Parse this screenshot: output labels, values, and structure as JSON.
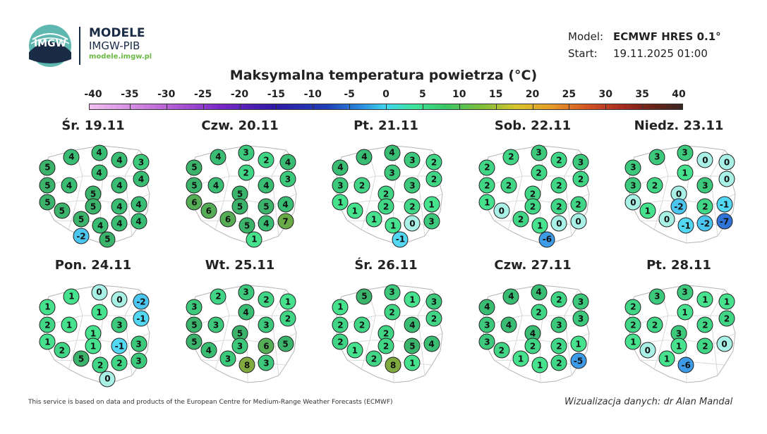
{
  "header": {
    "logo_text": "IMGW",
    "brand_title": "MODELE",
    "brand_subtitle": "IMGW-PIB",
    "brand_url": "modele.imgw.pl",
    "model_label": "Model:",
    "model_value": "ECMWF HRES 0.1°",
    "start_label": "Start:",
    "start_value": "19.11.2025 01:00"
  },
  "title": "Maksymalna temperatura powietrza (°C)",
  "scale": {
    "labels": [
      "-40",
      "-35",
      "-30",
      "-25",
      "-20",
      "-15",
      "-10",
      "-5",
      "0",
      "5",
      "10",
      "15",
      "20",
      "25",
      "30",
      "35",
      "40"
    ],
    "colors": {
      "min": "#f2c0f0",
      "zero": "#3ed7ef",
      "five": "#3ee39a",
      "ten": "#38c766",
      "max": "#3a2623"
    }
  },
  "days": [
    {
      "title": "Śr. 19.11",
      "values": [
        "4",
        "4",
        "4",
        "3",
        "5",
        "4",
        "4",
        "5",
        "4",
        "5",
        "4",
        "5",
        "5",
        "4",
        "4",
        "5",
        "5",
        "4",
        "4",
        "4",
        "5",
        "-2"
      ]
    },
    {
      "title": "Czw. 20.11",
      "values": [
        "4",
        "3",
        "2",
        "4",
        "5",
        "2",
        "3",
        "5",
        "4",
        "5",
        "4",
        "6",
        "5",
        "5",
        "4",
        "6",
        "6",
        "5",
        "4",
        "7",
        "1"
      ]
    },
    {
      "title": "Pt. 21.11",
      "values": [
        "4",
        "4",
        "3",
        "2",
        "4",
        "3",
        "2",
        "3",
        "2",
        "2",
        "3",
        "1",
        "2",
        "2",
        "1",
        "1",
        "1",
        "1",
        "0",
        "3",
        "-1"
      ]
    },
    {
      "title": "Sob. 22.11",
      "values": [
        "2",
        "3",
        "2",
        "3",
        "2",
        "2",
        "2",
        "2",
        "2",
        "2",
        "2",
        "1",
        "2",
        "2",
        "2",
        "0",
        "2",
        "1",
        "0",
        "0",
        "-6"
      ]
    },
    {
      "title": "Niedz. 23.11",
      "values": [
        "3",
        "3",
        "0",
        "0",
        "3",
        "1",
        "0",
        "3",
        "2",
        "0",
        "3",
        "0",
        "-2",
        "2",
        "-1",
        "1",
        "0",
        "-1",
        "-2",
        "-7"
      ]
    },
    {
      "title": "Pon. 24.11",
      "values": [
        "1",
        "0",
        "0",
        "-2",
        "1",
        "1",
        "-1",
        "2",
        "1",
        "1",
        "3",
        "1",
        "1",
        "-1",
        "3",
        "2",
        "5",
        "2",
        "2",
        "3",
        "0"
      ]
    },
    {
      "title": "Wt. 25.11",
      "values": [
        "2",
        "3",
        "2",
        "1",
        "3",
        "4",
        "2",
        "5",
        "3",
        "5",
        "3",
        "5",
        "3",
        "6",
        "5",
        "4",
        "3",
        "8",
        "3"
      ]
    },
    {
      "title": "Śr. 26.11",
      "values": [
        "5",
        "3",
        "1",
        "3",
        "1",
        "2",
        "2",
        "2",
        "2",
        "2",
        "4",
        "2",
        "2",
        "5",
        "4",
        "1",
        "2",
        "8",
        "1"
      ]
    },
    {
      "title": "Czw. 27.11",
      "values": [
        "4",
        "4",
        "2",
        "3",
        "4",
        "2",
        "3",
        "3",
        "4",
        "4",
        "3",
        "3",
        "2",
        "2",
        "1",
        "2",
        "1",
        "1",
        "2",
        "-5"
      ]
    },
    {
      "title": "Pt. 28.11",
      "values": [
        "3",
        "3",
        "1",
        "1",
        "2",
        "1",
        "2",
        "2",
        "2",
        "3",
        "2",
        "1",
        "1",
        "2",
        "0",
        "0",
        "1",
        "-6"
      ]
    }
  ],
  "footer": {
    "left": "This service is based on data and products of the European Centre for Medium-Range Weather Forecasts (ECMWF)",
    "right": "Wizualizacja danych: dr Alan Mandal"
  }
}
